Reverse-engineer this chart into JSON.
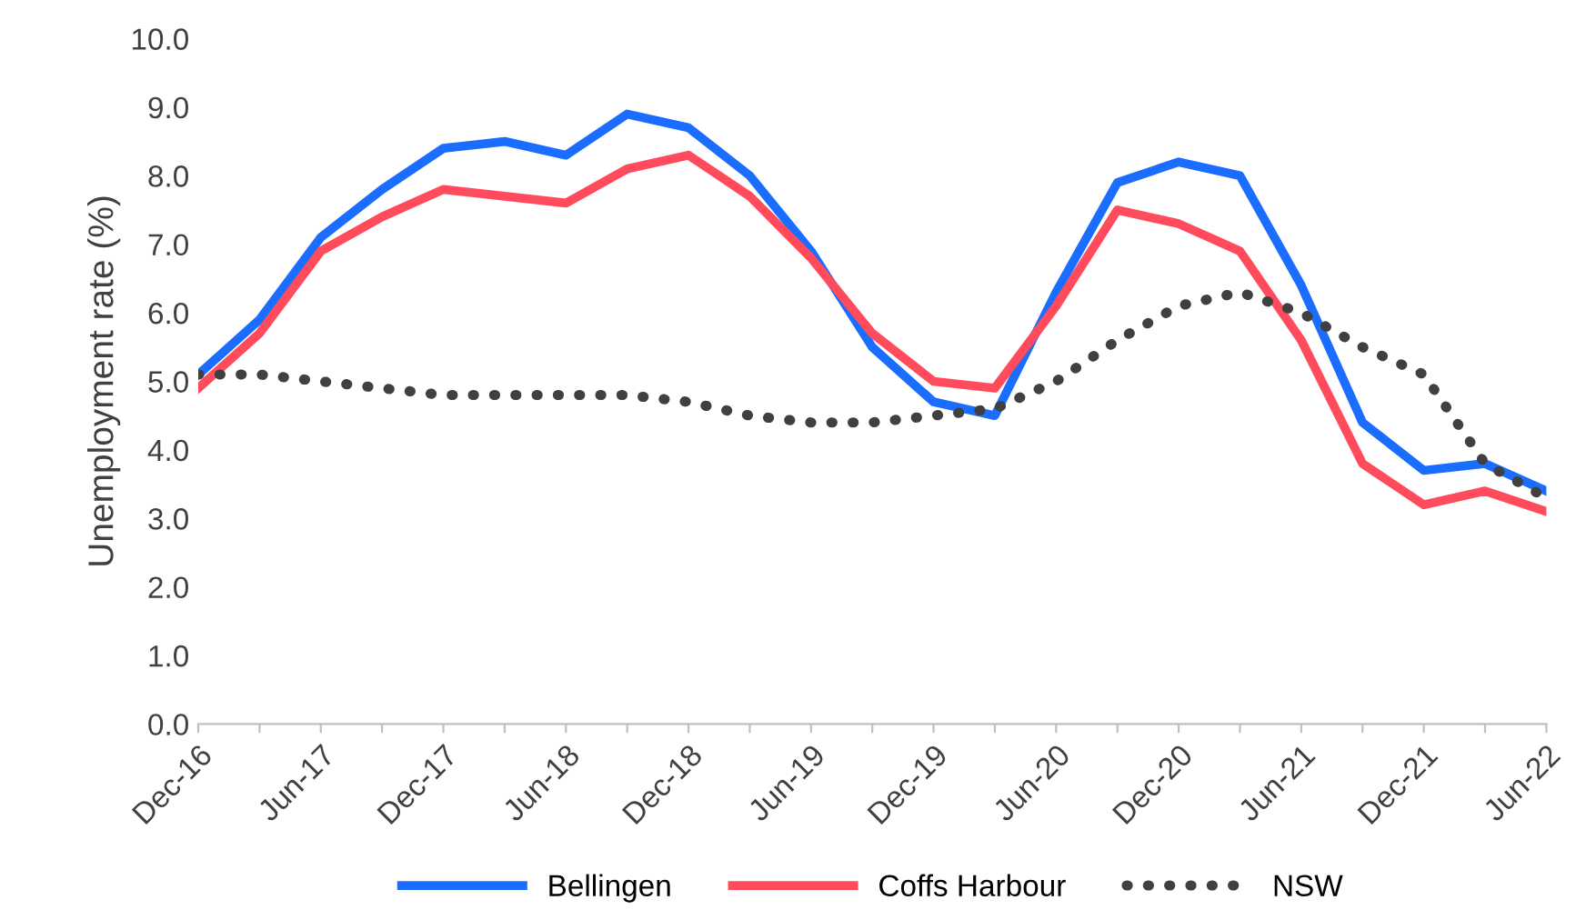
{
  "chart_data": {
    "type": "line",
    "ylabel": "Unemployment rate (%)",
    "categories": [
      "Dec-16",
      null,
      "Jun-17",
      null,
      "Dec-17",
      null,
      "Jun-18",
      null,
      "Dec-18",
      null,
      "Jun-19",
      null,
      "Dec-19",
      null,
      "Jun-20",
      null,
      "Dec-20",
      null,
      "Jun-21",
      null,
      "Dec-21",
      null,
      "Jun-22"
    ],
    "series": [
      {
        "name": "Bellingen",
        "color": "#1a6dff",
        "line_style": "solid",
        "values": [
          5.1,
          5.9,
          7.1,
          7.8,
          8.4,
          8.5,
          8.3,
          8.9,
          8.7,
          8.0,
          6.9,
          5.5,
          4.7,
          4.5,
          6.3,
          7.9,
          8.2,
          8.0,
          6.4,
          4.4,
          3.7,
          3.8,
          3.4
        ]
      },
      {
        "name": "Coffs Harbour",
        "color": "#ff4b5c",
        "line_style": "solid",
        "values": [
          4.9,
          5.7,
          6.9,
          7.4,
          7.8,
          7.7,
          7.6,
          8.1,
          8.3,
          7.7,
          6.8,
          5.7,
          5.0,
          4.9,
          6.1,
          7.5,
          7.3,
          6.9,
          5.6,
          3.8,
          3.2,
          3.4,
          3.1
        ]
      },
      {
        "name": "NSW",
        "color": "#404040",
        "line_style": "dotted",
        "values": [
          5.1,
          5.1,
          5.0,
          4.9,
          4.8,
          4.8,
          4.8,
          4.8,
          4.7,
          4.5,
          4.4,
          4.4,
          4.5,
          4.6,
          5.0,
          5.6,
          6.1,
          6.3,
          6.0,
          5.5,
          5.1,
          3.8,
          3.3
        ]
      }
    ],
    "ylim": [
      0,
      10
    ],
    "yticks": [
      {
        "value": 0,
        "label": "0.0"
      },
      {
        "value": 1,
        "label": "1.0"
      },
      {
        "value": 2,
        "label": "2.0"
      },
      {
        "value": 3,
        "label": "3.0"
      },
      {
        "value": 4,
        "label": "4.0"
      },
      {
        "value": 5,
        "label": "5.0"
      },
      {
        "value": 6,
        "label": "6.0"
      },
      {
        "value": 7,
        "label": "7.0"
      },
      {
        "value": 8,
        "label": "8.0"
      },
      {
        "value": 9,
        "label": "9.0"
      },
      {
        "value": 10,
        "label": "10.0"
      }
    ],
    "grid": false,
    "legend": "bottom",
    "marker": "none"
  }
}
